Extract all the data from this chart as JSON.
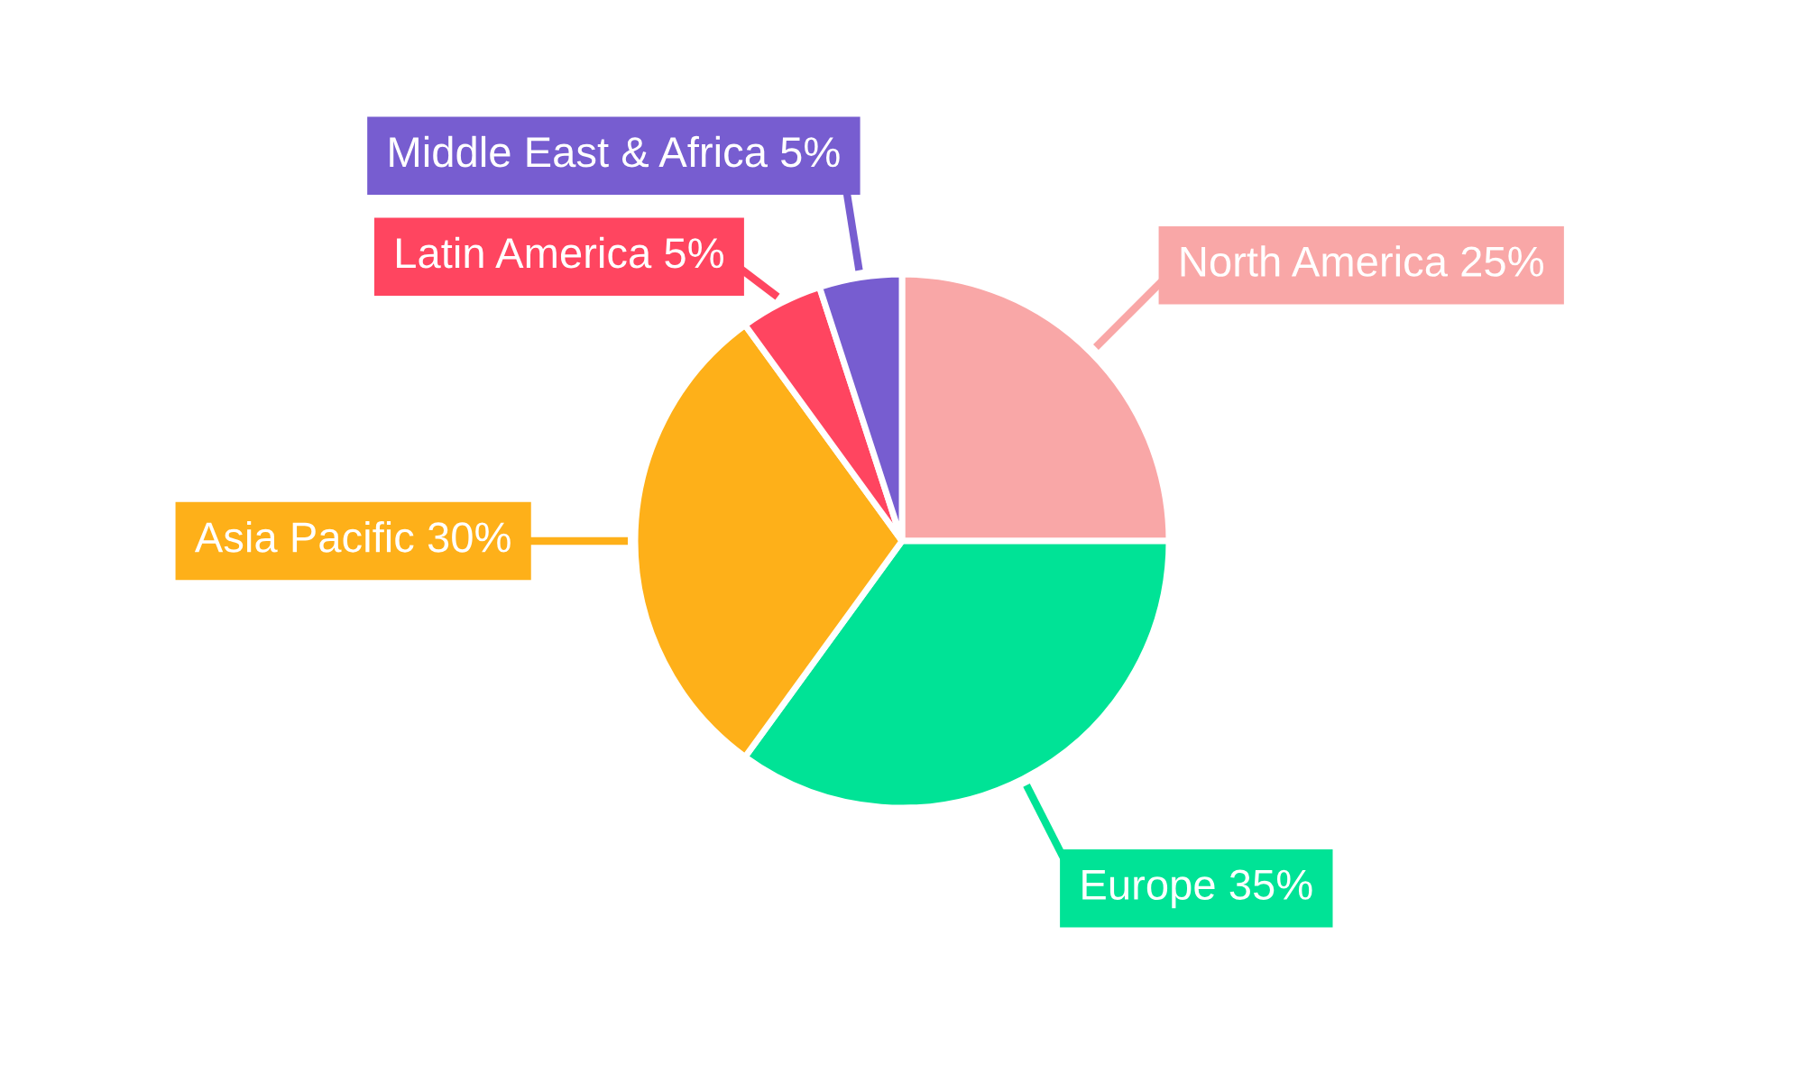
{
  "chart_data": {
    "type": "pie",
    "categories": [
      "North America",
      "Europe",
      "Asia Pacific",
      "Latin America",
      "Middle East & Africa"
    ],
    "values": [
      25,
      35,
      30,
      5,
      5
    ],
    "colors": [
      "#f9a7a7",
      "#00e396",
      "#feb019",
      "#ff4560",
      "#775dd0"
    ],
    "value_labels": [
      "25%",
      "35%",
      "30%",
      "5%",
      "5%"
    ]
  }
}
